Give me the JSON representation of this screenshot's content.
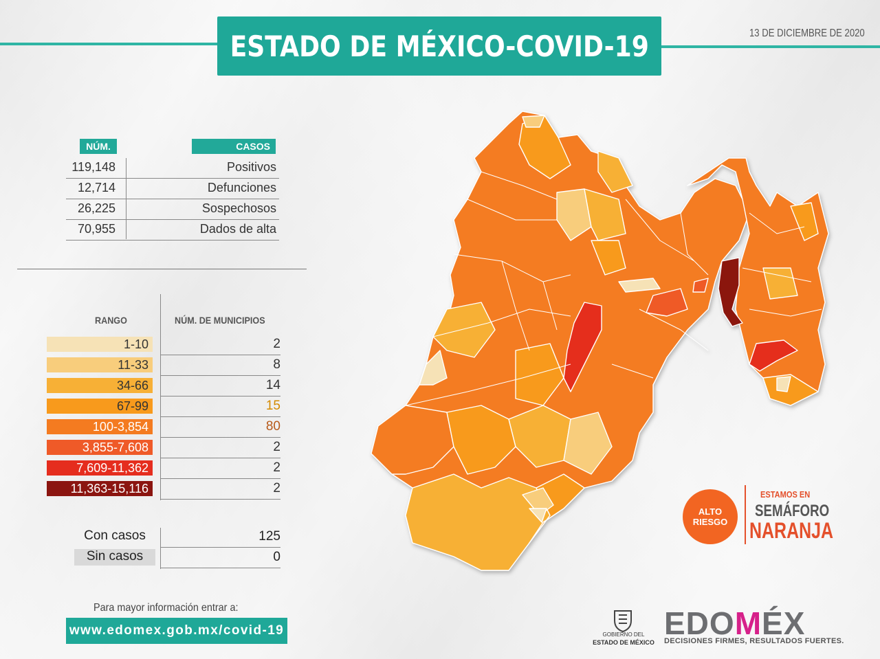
{
  "title": "ESTADO DE MÉXICO-COVID-19",
  "date": "13 DE DICIEMBRE DE 2020",
  "stats": {
    "header_num": "NÚM.",
    "header_casos": "CASOS",
    "rows": [
      {
        "num": "119,148",
        "label": "Positivos"
      },
      {
        "num": "12,714",
        "label": "Defunciones"
      },
      {
        "num": "26,225",
        "label": "Sospechosos"
      },
      {
        "num": "70,955",
        "label": "Dados de alta"
      }
    ]
  },
  "ranges": {
    "header_rango": "RANGO",
    "header_municipios": "NÚM. DE MUNICIPIOS",
    "rows": [
      {
        "range": "1-10",
        "count": "2",
        "color": "#f6e2b6",
        "text_color": "#333",
        "count_color": "#333"
      },
      {
        "range": "11-33",
        "count": "8",
        "color": "#f8cd7c",
        "text_color": "#333",
        "count_color": "#333"
      },
      {
        "range": "34-66",
        "count": "14",
        "color": "#f7b036",
        "text_color": "#333",
        "count_color": "#333"
      },
      {
        "range": "67-99",
        "count": "15",
        "color": "#f89a1c",
        "text_color": "#333",
        "count_color": "#d48a00"
      },
      {
        "range": "100-3,854",
        "count": "80",
        "color": "#f47b20",
        "text_color": "#fff",
        "count_color": "#b75a1a"
      },
      {
        "range": "3,855-7,608",
        "count": "2",
        "color": "#ef5a28",
        "text_color": "#fff",
        "count_color": "#333"
      },
      {
        "range": "7,609-11,362",
        "count": "2",
        "color": "#e52d1e",
        "text_color": "#fff",
        "count_color": "#333"
      },
      {
        "range": "11,363-15,116",
        "count": "2",
        "color": "#8b1510",
        "text_color": "#fff",
        "count_color": "#333"
      }
    ]
  },
  "summary": [
    {
      "label": "Con casos",
      "value": "125"
    },
    {
      "label": "Sin casos",
      "value": "0"
    }
  ],
  "info": {
    "text": "Para mayor información entrar a:",
    "url": "www.edomex.gob.mx/covid-19"
  },
  "semaforo": {
    "badge": "ALTO RIESGO",
    "line1": "ESTAMOS EN",
    "line2": "SEMÁFORO",
    "line3": "NARANJA"
  },
  "logos": {
    "gobierno_line1": "GOBIERNO DEL",
    "gobierno_line2": "ESTADO DE MÉXICO",
    "edomex_a": "EDO",
    "edomex_m": "M",
    "edomex_b": "ÉX",
    "tagline": "DECISIONES FIRMES, RESULTADOS FUERTES."
  },
  "colors": {
    "teal": "#1fa898",
    "semaforo": "#e4502b"
  }
}
